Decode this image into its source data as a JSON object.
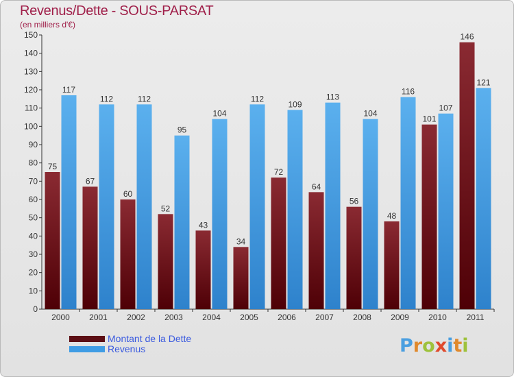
{
  "title": "Revenus/Dette - SOUS-PARSAT",
  "subtitle": "(en milliers d'€)",
  "colors": {
    "dette": "#7a1a24",
    "revenus": "#4aa2e4",
    "title": "#a0204a",
    "legend_text": "#3a5adf"
  },
  "legend": [
    {
      "label": "Montant de la Dette",
      "color": "#5c0e14"
    },
    {
      "label": "Revenus",
      "color": "#3f9ce4"
    }
  ],
  "logo": {
    "letters": [
      "P",
      "r",
      "o",
      "x",
      "i",
      "t",
      "i"
    ],
    "colors": [
      "#4a9fe0",
      "#e0892c",
      "#9ec23c",
      "#e04a2c",
      "#4a9fe0",
      "#e0892c",
      "#9ec23c"
    ]
  },
  "chart_data": {
    "type": "bar",
    "categories": [
      "2000",
      "2001",
      "2002",
      "2003",
      "2004",
      "2005",
      "2006",
      "2007",
      "2008",
      "2009",
      "2010",
      "2011"
    ],
    "series": [
      {
        "name": "Montant de la Dette",
        "values": [
          75,
          67,
          60,
          52,
          43,
          34,
          72,
          64,
          56,
          48,
          101,
          146
        ]
      },
      {
        "name": "Revenus",
        "values": [
          117,
          112,
          112,
          95,
          104,
          112,
          109,
          113,
          104,
          116,
          107,
          121
        ]
      }
    ],
    "title": "Revenus/Dette - SOUS-PARSAT",
    "ylabel": "(en milliers d'€)",
    "ylim": [
      0,
      150
    ],
    "yticks": [
      0,
      10,
      20,
      30,
      40,
      50,
      60,
      70,
      80,
      90,
      100,
      110,
      120,
      130,
      140,
      150
    ],
    "grid": false,
    "legend_position": "bottom-left"
  }
}
